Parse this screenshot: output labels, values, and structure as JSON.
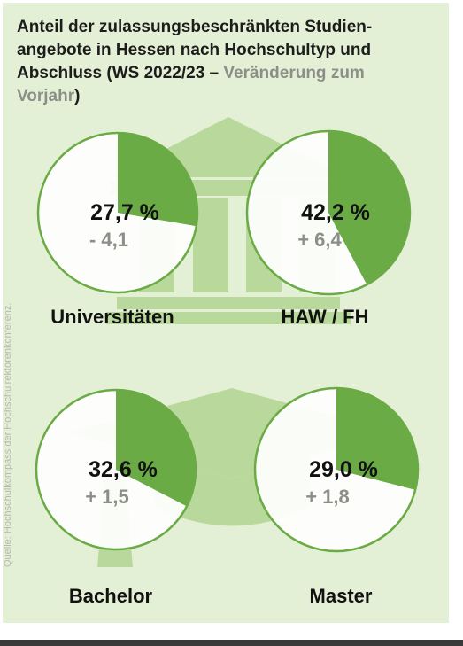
{
  "title": {
    "main": "Anteil der zulassungsbeschränkten Studienangebote in Hessen nach Hochschultyp und Abschluss (WS 2022/23 –",
    "line1": "Anteil der zulassungsbeschränkten Studien-",
    "line2": "angebote in Hessen nach Hochschultyp und",
    "line3a": "Abschluss (WS 2022/23 –",
    "line3b": "Veränderung zum",
    "line4a": "Vorjahr",
    "line4b": ")"
  },
  "source": "Quelle: Hochschulkompass der Hochschulrektorenkonferenz.",
  "colors": {
    "background": "#e4f0d5",
    "pie_fill": "#6aab45",
    "pie_stroke": "#6aab45",
    "icon": "#b9d99c",
    "value_text": "#111111",
    "change_text": "#8b8f88"
  },
  "icons": {
    "university": "university-building-icon",
    "graduation": "graduation-cap-icon"
  },
  "chart_data": [
    {
      "type": "pie",
      "label": "Universitäten",
      "value": 27.7,
      "value_label": "27,7 %",
      "change": -4.1,
      "change_label": "- 4,1"
    },
    {
      "type": "pie",
      "label": "HAW / FH",
      "value": 42.2,
      "value_label": "42,2 %",
      "change": 6.4,
      "change_label": "+ 6,4"
    },
    {
      "type": "pie",
      "label": "Bachelor",
      "value": 32.6,
      "value_label": "32,6 %",
      "change": 1.5,
      "change_label": "+ 1,5"
    },
    {
      "type": "pie",
      "label": "Master",
      "value": 29.0,
      "value_label": "29,0 %",
      "change": 1.8,
      "change_label": "+ 1,8"
    }
  ]
}
